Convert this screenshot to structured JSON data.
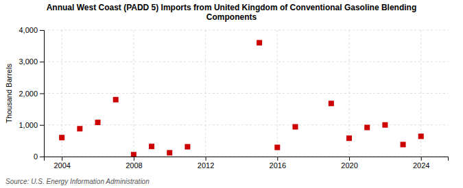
{
  "chart_data": {
    "type": "scatter",
    "title": "Annual West Coast (PADD 5) Imports from United Kingdom of Conventional Gasoline Blending\nComponents",
    "ylabel": "Thousand Barrels",
    "annotations": [
      "Source: U.S. Energy Information Administration"
    ],
    "x": [
      2004,
      2005,
      2006,
      2007,
      2008,
      2009,
      2010,
      2011,
      2015,
      2016,
      2017,
      2019,
      2020,
      2021,
      2022,
      2023,
      2024
    ],
    "values": [
      600,
      880,
      1080,
      1800,
      60,
      320,
      120,
      310,
      3600,
      290,
      940,
      1680,
      580,
      920,
      1000,
      380,
      640
    ],
    "color": "#cc0000",
    "marker": "square",
    "xlim": [
      2003.0,
      2025.5
    ],
    "xticks": [
      2004,
      2008,
      2012,
      2016,
      2020,
      2024
    ],
    "ylim": [
      0,
      4000
    ],
    "yticks": [
      0,
      {
        "value": 1000,
        "label": "1,000"
      },
      {
        "value": 2000,
        "label": "2,000"
      },
      {
        "value": 3000,
        "label": "3,000"
      },
      {
        "value": 4000,
        "label": "4,000"
      }
    ],
    "grid": true
  }
}
